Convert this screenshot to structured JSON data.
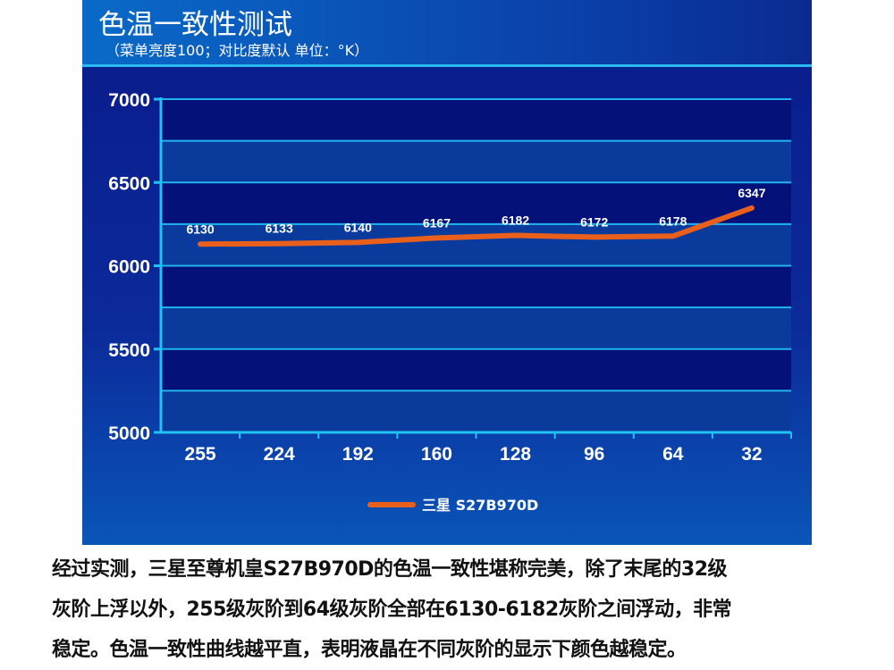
{
  "header": {
    "title": "色温一致性测试",
    "subtitle": "（菜单亮度100；对比度默认 单位：°K）"
  },
  "chart_data": {
    "type": "line",
    "categories": [
      "255",
      "224",
      "192",
      "160",
      "128",
      "96",
      "64",
      "32"
    ],
    "series": [
      {
        "name": "三星 S27B970D",
        "values": [
          6130,
          6133,
          6140,
          6167,
          6182,
          6172,
          6178,
          6347
        ],
        "color": "#e8601c"
      }
    ],
    "data_labels": [
      "6130",
      "6133",
      "6140",
      "6167",
      "6182",
      "6172",
      "6178",
      "6347"
    ],
    "ylim": [
      5000,
      7000
    ],
    "yticks": [
      "5000",
      "5500",
      "6000",
      "6500",
      "7000"
    ],
    "grid": true,
    "legend": "bottom"
  },
  "caption": [
    "经过实测，三星至尊机皇S27B970D的色温一致性堪称完美，除了末尾的32级",
    "灰阶上浮以外，255级灰阶到64级灰阶全部在6130-6182灰阶之间浮动，非常",
    "稳定。色温一致性曲线越平直，表明液晶在不同灰阶的显示下颜色越稳定。"
  ]
}
